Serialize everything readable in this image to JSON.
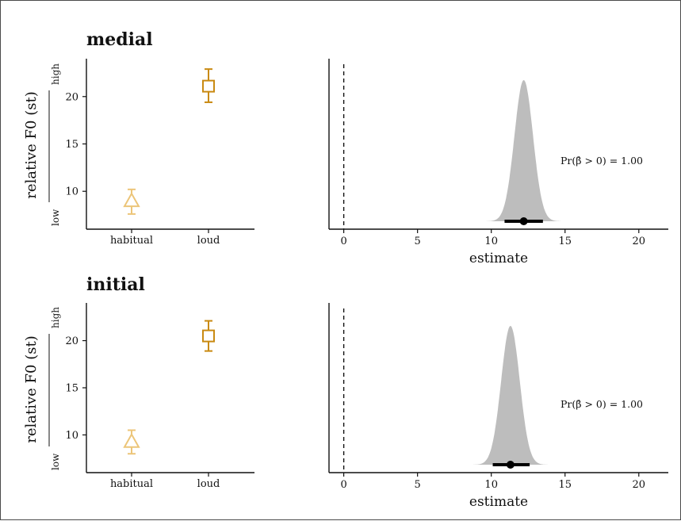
{
  "colors": {
    "habitual": "#ecc579",
    "loud": "#c98a12",
    "posterior_fill": "#bdbdbd",
    "axis": "#111111"
  },
  "chart_data": [
    {
      "panel": "medial",
      "title": "medial",
      "points_chart": {
        "type": "scatter",
        "categories": [
          "habitual",
          "loud"
        ],
        "points": [
          {
            "category": "habitual",
            "y": 9.0,
            "lower": 7.6,
            "upper": 10.2,
            "marker": "triangle-icon"
          },
          {
            "category": "loud",
            "y": 21.1,
            "lower": 19.4,
            "upper": 22.9,
            "marker": "square-icon"
          }
        ],
        "ylabel": "relative F0 (st)",
        "ylabel_low": "low",
        "ylabel_high": "high",
        "yticks": [
          10,
          15,
          20
        ],
        "ylim": [
          6,
          24
        ]
      },
      "posterior_chart": {
        "type": "area",
        "mean": 12.2,
        "sd": 0.63,
        "interval": [
          10.9,
          13.5
        ],
        "point_estimate": 12.2,
        "xlabel": "estimate",
        "xticks": [
          0,
          5,
          10,
          15,
          20
        ],
        "xlim": [
          -1,
          22
        ],
        "reference_line": 0,
        "annotation": "Pr(β̂ > 0) = 1.00"
      }
    },
    {
      "panel": "initial",
      "title": "initial",
      "points_chart": {
        "type": "scatter",
        "categories": [
          "habitual",
          "loud"
        ],
        "points": [
          {
            "category": "habitual",
            "y": 9.3,
            "lower": 8.0,
            "upper": 10.5,
            "marker": "triangle-icon"
          },
          {
            "category": "loud",
            "y": 20.5,
            "lower": 18.9,
            "upper": 22.1,
            "marker": "square-icon"
          }
        ],
        "ylabel": "relative F0 (st)",
        "ylabel_low": "low",
        "ylabel_high": "high",
        "yticks": [
          10,
          15,
          20
        ],
        "ylim": [
          6,
          24
        ]
      },
      "posterior_chart": {
        "type": "area",
        "mean": 11.3,
        "sd": 0.63,
        "interval": [
          10.1,
          12.6
        ],
        "point_estimate": 11.3,
        "xlabel": "estimate",
        "xticks": [
          0,
          5,
          10,
          15,
          20
        ],
        "xlim": [
          -1,
          22
        ],
        "reference_line": 0,
        "annotation": "Pr(β̂ > 0) = 1.00"
      }
    }
  ]
}
